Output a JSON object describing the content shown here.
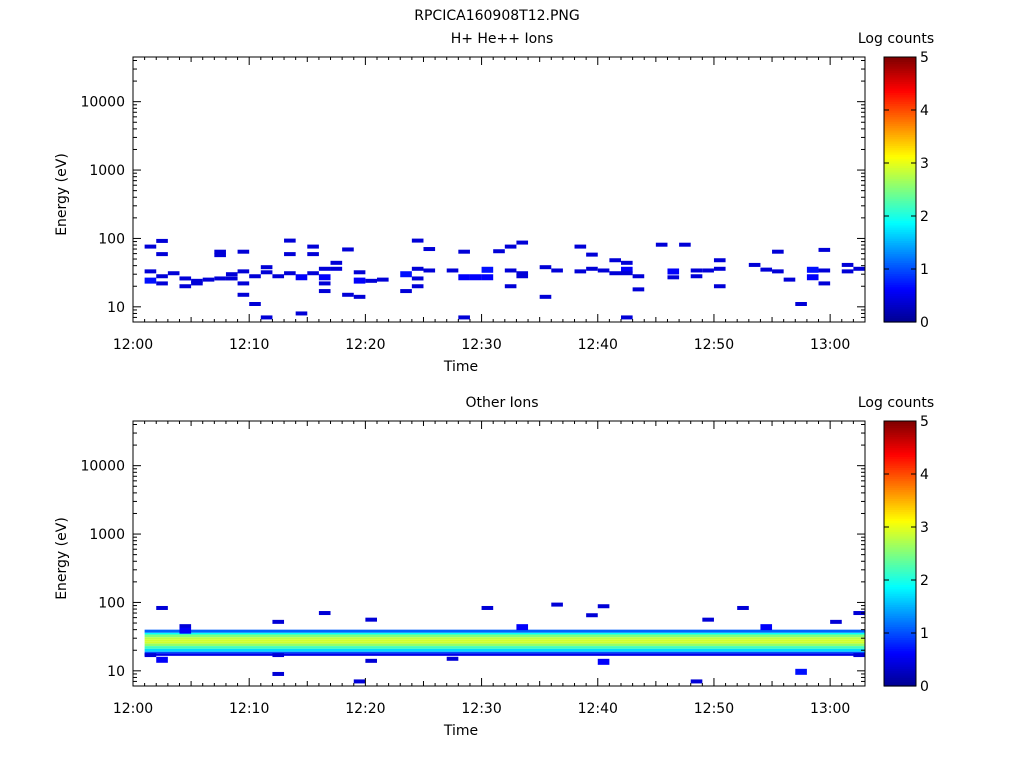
{
  "figure_title": "RPCICA160908T12.PNG",
  "colors": {
    "axis": "#000000",
    "colormap": [
      "#00008f",
      "#0000ff",
      "#007fff",
      "#00ffff",
      "#7fff7f",
      "#ffff00",
      "#ff7f00",
      "#ff0000",
      "#7f0000"
    ]
  },
  "chart_data": [
    {
      "type": "heatmap",
      "title": "H+ He++ Ions",
      "xlabel": "Time",
      "ylabel": "Energy (eV)",
      "y_scale": "log",
      "ylim": [
        6,
        45000
      ],
      "xlim": [
        "12:00",
        "13:03"
      ],
      "x_ticks": [
        "12:00",
        "12:10",
        "12:20",
        "12:30",
        "12:40",
        "12:50",
        "13:00"
      ],
      "y_ticks": [
        10,
        100,
        1000,
        10000
      ],
      "y_tick_labels": [
        "10",
        "100",
        "1000",
        "10000"
      ],
      "colorbar": {
        "label": "Log counts",
        "min": 0,
        "max": 5,
        "ticks": [
          "0",
          "1",
          "2",
          "3",
          "4",
          "5"
        ]
      },
      "cells": [
        [
          "12:01",
          76,
          0.4
        ],
        [
          "12:01",
          33,
          0.4
        ],
        [
          "12:01",
          25,
          0.7
        ],
        [
          "12:02",
          92,
          0.4
        ],
        [
          "12:02",
          59,
          0.4
        ],
        [
          "12:02",
          28,
          0.4
        ],
        [
          "12:02",
          22,
          0.4
        ],
        [
          "12:03",
          31,
          0.4
        ],
        [
          "12:04",
          26,
          0.4
        ],
        [
          "12:04",
          20,
          0.4
        ],
        [
          "12:05",
          24,
          0.4
        ],
        [
          "12:05",
          22,
          0.4
        ],
        [
          "12:06",
          25,
          0.4
        ],
        [
          "12:07",
          64,
          0.4
        ],
        [
          "12:07",
          57,
          0.4
        ],
        [
          "12:07",
          26,
          0.4
        ],
        [
          "12:08",
          30,
          0.4
        ],
        [
          "12:08",
          26,
          0.4
        ],
        [
          "12:09",
          64,
          0.4
        ],
        [
          "12:09",
          33,
          0.4
        ],
        [
          "12:09",
          22,
          0.4
        ],
        [
          "12:09",
          15,
          0.4
        ],
        [
          "12:10",
          28,
          0.4
        ],
        [
          "12:10",
          11,
          0.4
        ],
        [
          "12:11",
          38,
          0.4
        ],
        [
          "12:11",
          32,
          0.4
        ],
        [
          "12:11",
          7,
          0.4
        ],
        [
          "12:12",
          28,
          0.4
        ],
        [
          "12:13",
          93,
          0.4
        ],
        [
          "12:13",
          59,
          0.4
        ],
        [
          "12:13",
          31,
          0.4
        ],
        [
          "12:14",
          28,
          0.6
        ],
        [
          "12:14",
          8,
          0.4
        ],
        [
          "12:15",
          76,
          0.4
        ],
        [
          "12:15",
          59,
          0.4
        ],
        [
          "12:15",
          31,
          0.4
        ],
        [
          "12:16",
          36,
          0.4
        ],
        [
          "12:16",
          28,
          0.6
        ],
        [
          "12:16",
          22,
          0.4
        ],
        [
          "12:16",
          17,
          0.4
        ],
        [
          "12:17",
          44,
          0.4
        ],
        [
          "12:17",
          36,
          0.4
        ],
        [
          "12:18",
          69,
          0.4
        ],
        [
          "12:18",
          15,
          0.4
        ],
        [
          "12:19",
          32,
          0.4
        ],
        [
          "12:19",
          25,
          0.6
        ],
        [
          "12:19",
          14,
          0.4
        ],
        [
          "12:20",
          24,
          0.4
        ],
        [
          "12:21",
          25,
          0.4
        ],
        [
          "12:23",
          31,
          0.7
        ],
        [
          "12:23",
          17,
          0.4
        ],
        [
          "12:24",
          93,
          0.4
        ],
        [
          "12:24",
          36,
          0.4
        ],
        [
          "12:24",
          26,
          0.4
        ],
        [
          "12:24",
          20,
          0.4
        ],
        [
          "12:25",
          70,
          0.4
        ],
        [
          "12:25",
          34,
          0.4
        ],
        [
          "12:27",
          34,
          0.4
        ],
        [
          "12:28",
          64,
          0.4
        ],
        [
          "12:28",
          28,
          0.6
        ],
        [
          "12:28",
          7,
          0.4
        ],
        [
          "12:29",
          28,
          0.6
        ],
        [
          "12:30",
          36,
          0.7
        ],
        [
          "12:30",
          28,
          0.6
        ],
        [
          "12:31",
          65,
          0.4
        ],
        [
          "12:32",
          76,
          0.4
        ],
        [
          "12:32",
          34,
          0.4
        ],
        [
          "12:32",
          20,
          0.4
        ],
        [
          "12:33",
          87,
          0.4
        ],
        [
          "12:33",
          31,
          0.4
        ],
        [
          "12:33",
          28,
          0.4
        ],
        [
          "12:35",
          38,
          0.4
        ],
        [
          "12:35",
          14,
          0.4
        ],
        [
          "12:36",
          34,
          0.4
        ],
        [
          "12:38",
          76,
          0.4
        ],
        [
          "12:38",
          33,
          0.4
        ],
        [
          "12:39",
          58,
          0.4
        ],
        [
          "12:39",
          36,
          0.4
        ],
        [
          "12:40",
          34,
          0.4
        ],
        [
          "12:41",
          48,
          0.4
        ],
        [
          "12:41",
          31,
          0.4
        ],
        [
          "12:42",
          44,
          0.4
        ],
        [
          "12:42",
          36,
          0.6
        ],
        [
          "12:42",
          31,
          0.4
        ],
        [
          "12:42",
          7,
          0.4
        ],
        [
          "12:43",
          28,
          0.4
        ],
        [
          "12:43",
          18,
          0.4
        ],
        [
          "12:45",
          81,
          0.4
        ],
        [
          "12:46",
          34,
          0.6
        ],
        [
          "12:46",
          27,
          0.4
        ],
        [
          "12:47",
          81,
          0.4
        ],
        [
          "12:48",
          34,
          0.4
        ],
        [
          "12:48",
          28,
          0.4
        ],
        [
          "12:49",
          34,
          0.4
        ],
        [
          "12:50",
          48,
          0.4
        ],
        [
          "12:50",
          36,
          0.4
        ],
        [
          "12:50",
          20,
          0.4
        ],
        [
          "12:53",
          41,
          0.4
        ],
        [
          "12:54",
          35,
          0.4
        ],
        [
          "12:55",
          64,
          0.4
        ],
        [
          "12:55",
          33,
          0.4
        ],
        [
          "12:56",
          25,
          0.4
        ],
        [
          "12:57",
          11,
          0.4
        ],
        [
          "12:58",
          36,
          0.7
        ],
        [
          "12:58",
          28,
          0.6
        ],
        [
          "12:59",
          68,
          0.4
        ],
        [
          "12:59",
          22,
          0.4
        ],
        [
          "12:59",
          34,
          0.4
        ],
        [
          "13:01",
          33,
          0.4
        ],
        [
          "13:01",
          41,
          0.4
        ],
        [
          "13:02",
          36,
          0.4
        ]
      ]
    },
    {
      "type": "heatmap",
      "title": "Other Ions",
      "xlabel": "Time",
      "ylabel": "Energy (eV)",
      "y_scale": "log",
      "ylim": [
        6,
        45000
      ],
      "xlim": [
        "12:00",
        "13:03"
      ],
      "x_ticks": [
        "12:00",
        "12:10",
        "12:20",
        "12:30",
        "12:40",
        "12:50",
        "13:00"
      ],
      "y_ticks": [
        10,
        100,
        1000,
        10000
      ],
      "y_tick_labels": [
        "10",
        "100",
        "1000",
        "10000"
      ],
      "colorbar": {
        "label": "Log counts",
        "min": 0,
        "max": 5,
        "ticks": [
          "0",
          "1",
          "2",
          "3",
          "4",
          "5"
        ]
      },
      "band": {
        "t_start": "12:01",
        "t_end": "13:03",
        "profile": [
          [
            40,
            1.1
          ],
          [
            36,
            1.9
          ],
          [
            34,
            2.5
          ],
          [
            31,
            2.8
          ],
          [
            29,
            2.9
          ],
          [
            27,
            2.9
          ],
          [
            25,
            2.6
          ],
          [
            23,
            2.2
          ],
          [
            21,
            1.7
          ],
          [
            19,
            1.0
          ],
          [
            18,
            0.5
          ]
        ]
      },
      "cells": [
        [
          "12:01",
          17,
          0.4
        ],
        [
          "12:02",
          83,
          0.4
        ],
        [
          "12:02",
          15,
          0.6
        ],
        [
          "12:04",
          45,
          0.4
        ],
        [
          "12:04",
          40,
          0.6
        ],
        [
          "12:12",
          52,
          0.4
        ],
        [
          "12:12",
          17,
          0.4
        ],
        [
          "12:12",
          9,
          0.4
        ],
        [
          "12:16",
          70,
          0.4
        ],
        [
          "12:20",
          56,
          0.4
        ],
        [
          "12:20",
          14,
          0.4
        ],
        [
          "12:19",
          7,
          0.4
        ],
        [
          "12:27",
          15,
          0.4
        ],
        [
          "12:30",
          83,
          0.4
        ],
        [
          "12:33",
          45,
          0.6
        ],
        [
          "12:36",
          93,
          0.4
        ],
        [
          "12:39",
          65,
          0.4
        ],
        [
          "12:40",
          88,
          0.4
        ],
        [
          "12:40",
          14,
          0.6
        ],
        [
          "12:48",
          7,
          0.4
        ],
        [
          "12:49",
          56,
          0.4
        ],
        [
          "12:52",
          83,
          0.4
        ],
        [
          "12:54",
          45,
          0.6
        ],
        [
          "12:57",
          10,
          0.7
        ],
        [
          "13:00",
          52,
          0.4
        ],
        [
          "13:02",
          70,
          0.4
        ],
        [
          "13:02",
          17,
          0.4
        ]
      ]
    }
  ]
}
